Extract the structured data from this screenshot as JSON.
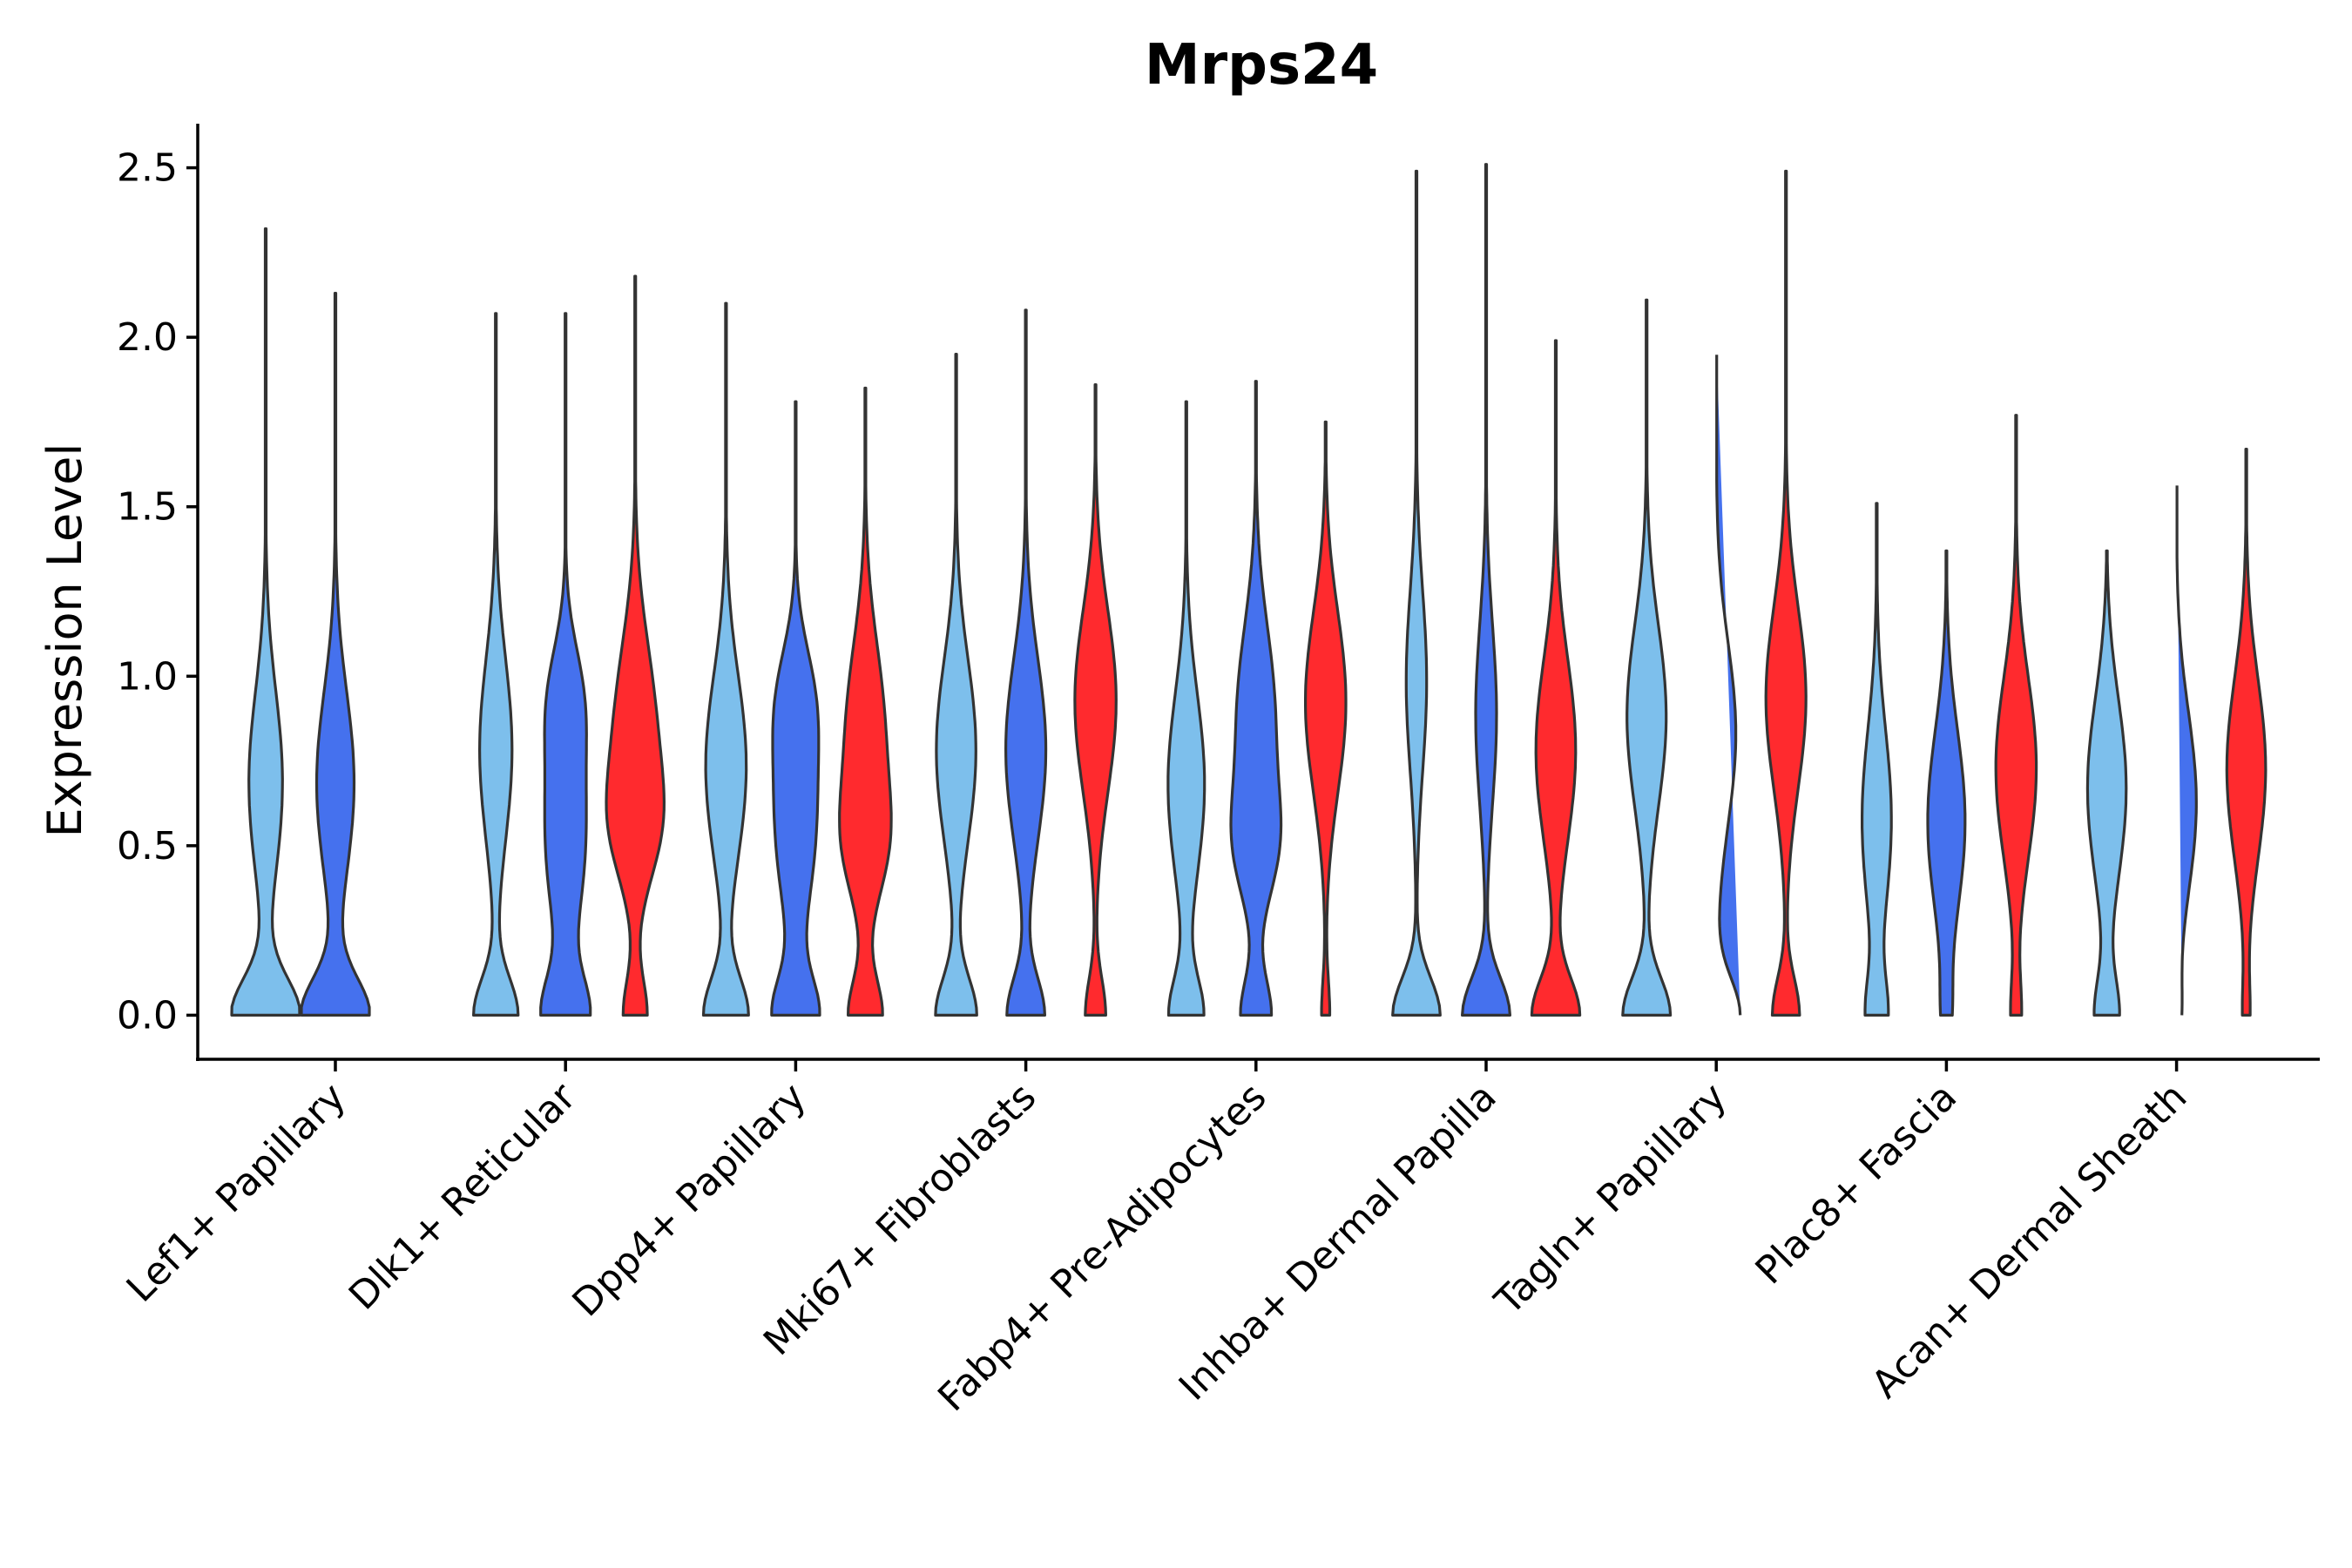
{
  "chart_data": {
    "type": "violin",
    "title": "Mrps24",
    "xlabel": "",
    "ylabel": "Expression Level",
    "ylim": [
      -0.13,
      2.63
    ],
    "yticks": [
      0.0,
      0.5,
      1.0,
      1.5,
      2.0,
      2.5
    ],
    "ytick_labels": [
      "0.0",
      "0.5",
      "1.0",
      "1.5",
      "2.0",
      "2.5"
    ],
    "grid": false,
    "legend": "none",
    "series": [
      {
        "name": "group-light-blue",
        "color": "#7DBFEC"
      },
      {
        "name": "group-blue",
        "color": "#4571EE"
      },
      {
        "name": "group-red",
        "color": "#FF2A2E"
      }
    ],
    "categories": [
      {
        "label": "Lef1+ Papillary",
        "violins": [
          {
            "series": 0,
            "max": 2.32,
            "w0": 1.0,
            "mode": 0.7,
            "mw": 0.55,
            "mode2": null,
            "mw2": 0
          },
          {
            "series": 1,
            "max": 2.13,
            "w0": 1.0,
            "mode": 0.7,
            "mw": 0.62,
            "mode2": null,
            "mw2": 0
          }
        ]
      },
      {
        "label": "Dlk1+ Reticular",
        "violins": [
          {
            "series": 0,
            "max": 2.07,
            "w0": 0.65,
            "mode": 0.8,
            "mw": 0.55,
            "mode2": null,
            "mw2": 0
          },
          {
            "series": 1,
            "max": 2.07,
            "w0": 0.65,
            "mode": 0.55,
            "mw": 0.65,
            "mode2": 0.95,
            "mw2": 0.45
          },
          {
            "series": 2,
            "max": 2.18,
            "w0": 0.35,
            "mode": 0.85,
            "mw": 0.7,
            "mode2": 0.55,
            "mw2": 0.5
          }
        ]
      },
      {
        "label": "Dpp4+ Papillary",
        "violins": [
          {
            "series": 0,
            "max": 2.1,
            "w0": 0.65,
            "mode": 0.75,
            "mw": 0.68,
            "mode2": null,
            "mw2": 0
          },
          {
            "series": 1,
            "max": 1.81,
            "w0": 0.65,
            "mode": 0.6,
            "mw": 0.68,
            "mode2": 0.95,
            "mw2": 0.45
          },
          {
            "series": 2,
            "max": 1.85,
            "w0": 0.5,
            "mode": 0.85,
            "mw": 0.68,
            "mode2": 0.5,
            "mw2": 0.5
          }
        ]
      },
      {
        "label": "Mki67+ Fibroblasts",
        "violins": [
          {
            "series": 0,
            "max": 1.95,
            "w0": 0.6,
            "mode": 0.8,
            "mw": 0.68,
            "mode2": null,
            "mw2": 0
          },
          {
            "series": 1,
            "max": 2.08,
            "w0": 0.55,
            "mode": 0.8,
            "mw": 0.68,
            "mode2": null,
            "mw2": 0
          },
          {
            "series": 2,
            "max": 1.86,
            "w0": 0.3,
            "mode": 0.95,
            "mw": 0.75,
            "mode2": null,
            "mw2": 0
          }
        ]
      },
      {
        "label": "Fabp4+ Pre-Adipocytes",
        "violins": [
          {
            "series": 0,
            "max": 1.81,
            "w0": 0.5,
            "mode": 0.7,
            "mw": 0.62,
            "mode2": null,
            "mw2": 0
          },
          {
            "series": 1,
            "max": 1.87,
            "w0": 0.45,
            "mode": 0.9,
            "mw": 0.68,
            "mode2": 0.5,
            "mw2": 0.55
          },
          {
            "series": 2,
            "max": 1.75,
            "w0": 0.12,
            "mode": 0.95,
            "mw": 0.75,
            "mode2": null,
            "mw2": 0
          }
        ]
      },
      {
        "label": "Inhba+ Dermal Papilla",
        "violins": [
          {
            "series": 0,
            "max": 2.49,
            "w0": 0.7,
            "mode": 1.0,
            "mw": 0.35,
            "mode2": null,
            "mw2": 0
          },
          {
            "series": 1,
            "max": 2.51,
            "w0": 0.7,
            "mode": 0.9,
            "mw": 0.35,
            "mode2": null,
            "mw2": 0
          },
          {
            "series": 2,
            "max": 1.99,
            "w0": 0.7,
            "mode": 0.8,
            "mw": 0.68,
            "mode2": null,
            "mw2": 0
          }
        ]
      },
      {
        "label": "Tagln+ Papillary",
        "violins": [
          {
            "series": 0,
            "max": 2.11,
            "w0": 0.7,
            "mode": 0.9,
            "mw": 0.68,
            "mode2": null,
            "mw2": 0
          },
          {
            "series": 1,
            "max": 1.97,
            "w0": 0.7,
            "mode": 0.85,
            "mw": 0.68,
            "mode2": null,
            "mw2": 0
          },
          {
            "series": 2,
            "max": 2.49,
            "w0": 0.4,
            "mode": 0.95,
            "mw": 0.68,
            "mode2": null,
            "mw2": 0
          }
        ]
      },
      {
        "label": "Plac8+ Fascia",
        "violins": [
          {
            "series": 0,
            "max": 1.51,
            "w0": 0.3,
            "mode": 0.6,
            "mw": 0.5,
            "mode2": null,
            "mw2": 0
          },
          {
            "series": 1,
            "max": 1.37,
            "w0": 0.12,
            "mode": 0.6,
            "mw": 0.65,
            "mode2": null,
            "mw2": 0
          },
          {
            "series": 2,
            "max": 1.77,
            "w0": 0.15,
            "mode": 0.75,
            "mw": 0.7,
            "mode2": null,
            "mw2": 0
          }
        ]
      },
      {
        "label": "Acan+ Dermal Sheath",
        "violins": [
          {
            "series": 0,
            "max": 1.37,
            "w0": 0.35,
            "mode": 0.7,
            "mw": 0.7,
            "mode2": null,
            "mw2": 0
          },
          {
            "series": 1,
            "max": 1.58,
            "w0": 0.12,
            "mode": 0.65,
            "mw": 0.68,
            "mode2": null,
            "mw2": 0
          },
          {
            "series": 2,
            "max": 1.67,
            "w0": 0.1,
            "mode": 0.75,
            "mw": 0.68,
            "mode2": null,
            "mw2": 0
          }
        ]
      }
    ]
  }
}
